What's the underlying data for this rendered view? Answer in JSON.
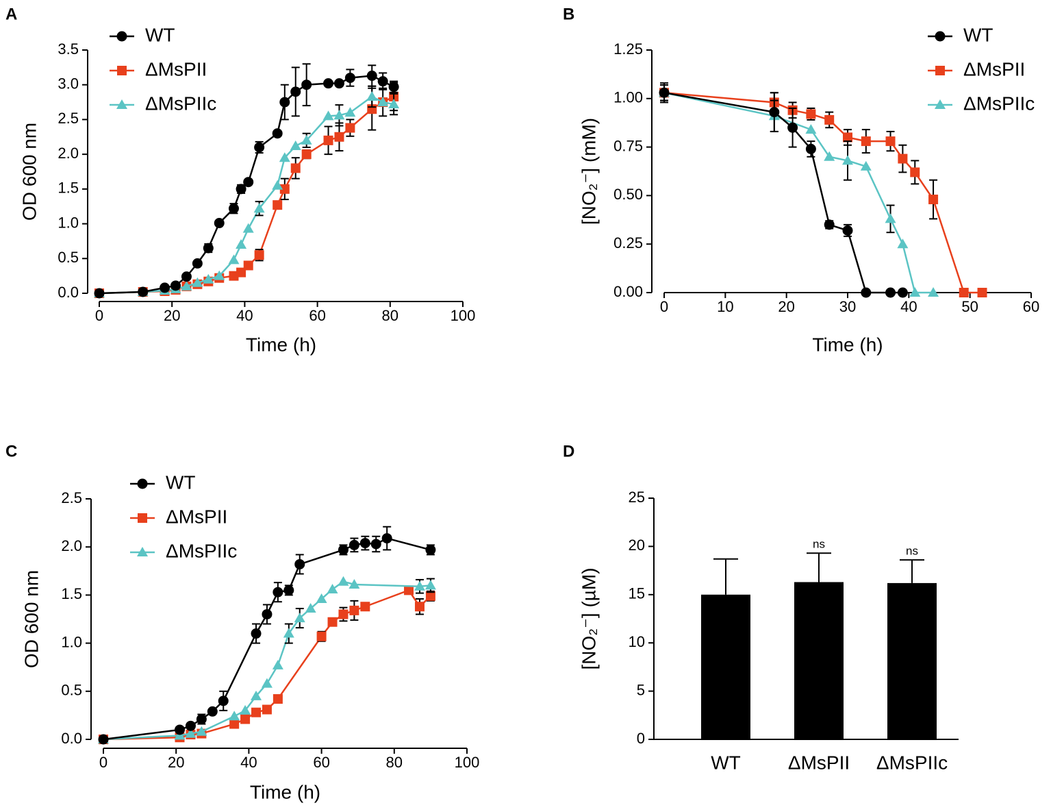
{
  "chart_data": [
    {
      "type": "line",
      "panel_label": "A",
      "xlabel": "Time (h)",
      "ylabel": "OD 600 nm",
      "legend": "upper left",
      "xlim": [
        0,
        100
      ],
      "xticks": [
        0,
        20,
        40,
        60,
        80,
        100
      ],
      "ylim": [
        0,
        3.5
      ],
      "yticks": [
        {
          "value": 0,
          "label": "0.0"
        },
        0.5,
        {
          "value": 1,
          "label": "1.0"
        },
        1.5,
        {
          "value": 2,
          "label": "2.0"
        },
        2.5,
        {
          "value": 3,
          "label": "3.0"
        },
        3.5
      ],
      "series": [
        {
          "name": "WT",
          "color": "#000000",
          "marker": "circle",
          "x": [
            0,
            12,
            18,
            21,
            24,
            27,
            30,
            33,
            37,
            39,
            41,
            44,
            49,
            51,
            54,
            57,
            63,
            66,
            69,
            75,
            78,
            81
          ],
          "values": [
            0.0,
            0.02,
            0.08,
            0.11,
            0.24,
            0.43,
            0.65,
            1.01,
            1.22,
            1.5,
            1.6,
            2.1,
            2.3,
            2.75,
            2.9,
            3.0,
            3.02,
            3.02,
            3.1,
            3.13,
            3.05,
            2.97
          ],
          "errors": [
            null,
            null,
            null,
            null,
            null,
            null,
            0.06,
            null,
            0.07,
            0.06,
            null,
            0.08,
            null,
            0.25,
            0.35,
            0.3,
            null,
            null,
            0.12,
            0.15,
            0.12,
            0.08
          ]
        },
        {
          "name": "ΔMsPII",
          "color": "#e8401c",
          "marker": "square",
          "x": [
            0,
            12,
            18,
            21,
            24,
            27,
            30,
            33,
            37,
            39,
            41,
            44,
            49,
            51,
            54,
            57,
            63,
            66,
            69,
            75,
            78,
            81
          ],
          "values": [
            0,
            0.02,
            0.03,
            0.05,
            0.1,
            0.13,
            0.17,
            0.22,
            0.25,
            0.3,
            0.4,
            0.55,
            1.27,
            1.5,
            1.8,
            2.0,
            2.2,
            2.25,
            2.38,
            2.65,
            2.75,
            2.83
          ],
          "errors": [
            null,
            null,
            null,
            null,
            null,
            null,
            null,
            null,
            null,
            null,
            null,
            0.08,
            null,
            0.15,
            0.15,
            0.06,
            0.2,
            0.2,
            0.12,
            0.3,
            0.2,
            0.2
          ]
        },
        {
          "name": "ΔMsPIIc",
          "color": "#5bc4c4",
          "marker": "triangle",
          "x": [
            0,
            12,
            18,
            21,
            24,
            27,
            30,
            33,
            37,
            39,
            41,
            44,
            49,
            51,
            54,
            57,
            63,
            66,
            69,
            75,
            78,
            81
          ],
          "values": [
            0,
            0.02,
            0.04,
            0.06,
            0.1,
            0.15,
            0.2,
            0.25,
            0.48,
            0.7,
            0.93,
            1.22,
            1.55,
            1.95,
            2.12,
            2.2,
            2.55,
            2.56,
            2.6,
            2.83,
            2.75,
            2.72
          ],
          "errors": [
            null,
            null,
            null,
            null,
            null,
            null,
            null,
            null,
            null,
            null,
            null,
            0.1,
            null,
            null,
            null,
            0.1,
            null,
            0.15,
            null,
            0.15,
            null,
            0.15
          ]
        }
      ]
    },
    {
      "type": "line",
      "panel_label": "B",
      "xlabel": "Time (h)",
      "ylabel": "[NO₂⁻] (mM)",
      "legend": "upper right",
      "xlim": [
        0,
        60
      ],
      "xticks": [
        0,
        10,
        20,
        30,
        40,
        50,
        60
      ],
      "ylim": [
        0,
        1.25
      ],
      "yticks": [
        {
          "value": 0,
          "label": "0.00"
        },
        {
          "value": 0.25,
          "label": "0.25"
        },
        {
          "value": 0.5,
          "label": "0.50"
        },
        {
          "value": 0.75,
          "label": "0.75"
        },
        {
          "value": 1,
          "label": "1.00"
        },
        {
          "value": 1.25,
          "label": "1.25"
        }
      ],
      "series": [
        {
          "name": "WT",
          "color": "#000000",
          "marker": "circle",
          "x": [
            0,
            18,
            21,
            24,
            27,
            30,
            33,
            37,
            39
          ],
          "values": [
            1.03,
            0.93,
            0.85,
            0.74,
            0.35,
            0.32,
            0,
            0,
            0
          ],
          "errors": [
            0.05,
            0.1,
            0.1,
            0.04,
            0.02,
            0.03,
            null,
            null,
            null
          ]
        },
        {
          "name": "ΔMsPII",
          "color": "#e8401c",
          "marker": "square",
          "x": [
            0,
            18,
            21,
            24,
            27,
            30,
            33,
            37,
            39,
            41,
            44,
            49,
            52
          ],
          "values": [
            1.03,
            0.98,
            0.94,
            0.92,
            0.89,
            0.8,
            0.78,
            0.78,
            0.69,
            0.62,
            0.48,
            0,
            0
          ],
          "errors": [
            0.04,
            0.05,
            0.04,
            0.03,
            0.04,
            0.04,
            0.06,
            0.05,
            0.07,
            0.06,
            0.1,
            null,
            null
          ]
        },
        {
          "name": "ΔMsPIIc",
          "color": "#5bc4c4",
          "marker": "triangle",
          "x": [
            0,
            18,
            24,
            27,
            30,
            33,
            37,
            39,
            41,
            44
          ],
          "values": [
            1.03,
            0.91,
            0.84,
            0.7,
            0.68,
            0.65,
            0.38,
            0.25,
            0,
            0
          ],
          "errors": [
            0.04,
            0.08,
            null,
            null,
            0.1,
            null,
            0.07,
            null,
            null,
            null
          ]
        }
      ]
    },
    {
      "type": "line",
      "panel_label": "C",
      "xlabel": "Time (h)",
      "ylabel": "OD 600 nm",
      "legend": "upper left",
      "xlim": [
        0,
        100
      ],
      "xticks": [
        0,
        20,
        40,
        60,
        80,
        100
      ],
      "ylim": [
        0,
        2.5
      ],
      "yticks": [
        {
          "value": 0,
          "label": "0.0"
        },
        0.5,
        {
          "value": 1,
          "label": "1.0"
        },
        1.5,
        {
          "value": 2,
          "label": "2.0"
        },
        2.5
      ],
      "series": [
        {
          "name": "WT",
          "color": "#000000",
          "marker": "circle",
          "x": [
            0,
            21,
            24,
            27,
            30,
            33,
            42,
            45,
            48,
            51,
            54,
            66,
            69,
            72,
            75,
            78,
            90
          ],
          "values": [
            0,
            0.1,
            0.14,
            0.21,
            0.29,
            0.4,
            1.1,
            1.3,
            1.53,
            1.55,
            1.82,
            1.97,
            2.02,
            2.04,
            2.03,
            2.09,
            1.97
          ],
          "errors": [
            null,
            null,
            null,
            0.05,
            null,
            0.1,
            0.1,
            0.1,
            0.1,
            0.05,
            0.1,
            0.05,
            0.07,
            0.07,
            0.08,
            0.12,
            0.05
          ]
        },
        {
          "name": "ΔMsPII",
          "color": "#e8401c",
          "marker": "square",
          "x": [
            0,
            21,
            24,
            27,
            36,
            39,
            42,
            45,
            48,
            60,
            63,
            66,
            69,
            72,
            84,
            87,
            90
          ],
          "values": [
            0,
            0.02,
            0.05,
            0.06,
            0.16,
            0.21,
            0.28,
            0.31,
            0.42,
            1.07,
            1.22,
            1.3,
            1.34,
            1.38,
            1.55,
            1.38,
            1.49
          ],
          "errors": [
            null,
            null,
            null,
            null,
            null,
            null,
            null,
            null,
            null,
            0.05,
            null,
            0.07,
            0.1,
            null,
            null,
            0.08,
            0.05
          ]
        },
        {
          "name": "ΔMsPIIc",
          "color": "#5bc4c4",
          "marker": "triangle",
          "x": [
            0,
            21,
            24,
            27,
            36,
            39,
            42,
            45,
            48,
            51,
            54,
            57,
            60,
            63,
            66,
            69,
            87,
            90
          ],
          "values": [
            0,
            0.04,
            0.06,
            0.08,
            0.24,
            0.3,
            0.45,
            0.58,
            0.77,
            1.1,
            1.26,
            1.36,
            1.46,
            1.56,
            1.64,
            1.61,
            1.59,
            1.6
          ],
          "errors": [
            null,
            null,
            null,
            null,
            null,
            null,
            null,
            null,
            null,
            0.1,
            0.1,
            null,
            null,
            null,
            null,
            null,
            0.07,
            0.07
          ]
        }
      ]
    },
    {
      "type": "bar",
      "panel_label": "D",
      "ylabel": "[NO₂⁻] (µM)",
      "categories": [
        "WT",
        "ΔMsPII",
        "ΔMsPIIc"
      ],
      "values": [
        15.0,
        16.3,
        16.2
      ],
      "errors": [
        3.7,
        3.0,
        2.4
      ],
      "significance": [
        null,
        "ns",
        "ns"
      ],
      "color": "#000000",
      "ylim": [
        0,
        25
      ],
      "yticks": [
        0,
        5,
        10,
        15,
        20,
        25
      ]
    }
  ]
}
